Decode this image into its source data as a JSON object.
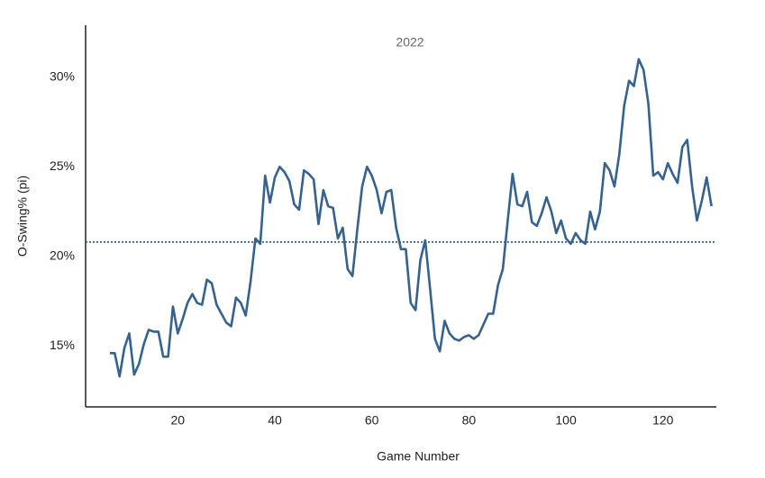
{
  "chart_data": {
    "type": "line",
    "title": "2022",
    "x_label": "Game Number",
    "y_label": "O-Swing% (pi)",
    "x": [
      6,
      7,
      8,
      9,
      10,
      11,
      12,
      13,
      14,
      15,
      16,
      17,
      18,
      19,
      20,
      21,
      22,
      23,
      24,
      25,
      26,
      27,
      28,
      29,
      30,
      31,
      32,
      33,
      34,
      35,
      36,
      37,
      38,
      39,
      40,
      41,
      42,
      43,
      44,
      45,
      46,
      47,
      48,
      49,
      50,
      51,
      52,
      53,
      54,
      55,
      56,
      57,
      58,
      59,
      60,
      61,
      62,
      63,
      64,
      65,
      66,
      67,
      68,
      69,
      70,
      71,
      72,
      73,
      74,
      75,
      76,
      77,
      78,
      79,
      80,
      81,
      82,
      83,
      84,
      85,
      86,
      87,
      88,
      89,
      90,
      91,
      92,
      93,
      94,
      95,
      96,
      97,
      98,
      99,
      100,
      101,
      102,
      103,
      104,
      105,
      106,
      107,
      108,
      109,
      110,
      111,
      112,
      113,
      114,
      115,
      116,
      117,
      118,
      119,
      120,
      121,
      122,
      123,
      124,
      125,
      126,
      127,
      128,
      129,
      130
    ],
    "values": [
      14.6,
      14.6,
      13.3,
      14.9,
      15.7,
      13.4,
      14.0,
      15.1,
      15.9,
      15.8,
      15.8,
      14.4,
      14.4,
      17.2,
      15.7,
      16.5,
      17.4,
      17.9,
      17.4,
      17.3,
      18.7,
      18.5,
      17.3,
      16.8,
      16.3,
      16.1,
      17.7,
      17.4,
      16.7,
      18.6,
      21.0,
      20.7,
      24.5,
      23.0,
      24.4,
      25.0,
      24.7,
      24.2,
      22.9,
      22.6,
      24.8,
      24.6,
      24.3,
      21.8,
      23.7,
      22.8,
      22.7,
      21.0,
      21.6,
      19.3,
      18.9,
      21.5,
      23.9,
      25.0,
      24.5,
      23.7,
      22.4,
      23.6,
      23.7,
      21.6,
      20.4,
      20.4,
      17.4,
      17.0,
      19.8,
      20.9,
      18.2,
      15.4,
      14.7,
      16.4,
      15.7,
      15.4,
      15.3,
      15.5,
      15.6,
      15.4,
      15.6,
      16.2,
      16.8,
      16.8,
      18.4,
      19.3,
      22.0,
      24.6,
      22.9,
      22.8,
      23.6,
      21.9,
      21.7,
      22.4,
      23.3,
      22.5,
      21.3,
      22.0,
      21.0,
      20.7,
      21.3,
      20.9,
      20.7,
      22.5,
      21.5,
      22.5,
      25.2,
      24.8,
      23.9,
      25.7,
      28.4,
      29.8,
      29.5,
      31.0,
      30.4,
      28.5,
      24.5,
      24.7,
      24.3,
      25.2,
      24.6,
      24.1,
      26.1,
      26.5,
      23.9,
      22.0,
      23.1,
      24.4,
      22.8
    ],
    "color": "#35628f",
    "reference_line": 20.8,
    "xlim": [
      1,
      131
    ],
    "ylim": [
      11.6,
      32.9
    ],
    "xticks": [
      20,
      40,
      60,
      80,
      100,
      120
    ],
    "yticks": [
      {
        "value": 15,
        "label": "15%"
      },
      {
        "value": 20,
        "label": "20%"
      },
      {
        "value": 25,
        "label": "25%"
      },
      {
        "value": 30,
        "label": "30%"
      }
    ],
    "grid": false
  }
}
